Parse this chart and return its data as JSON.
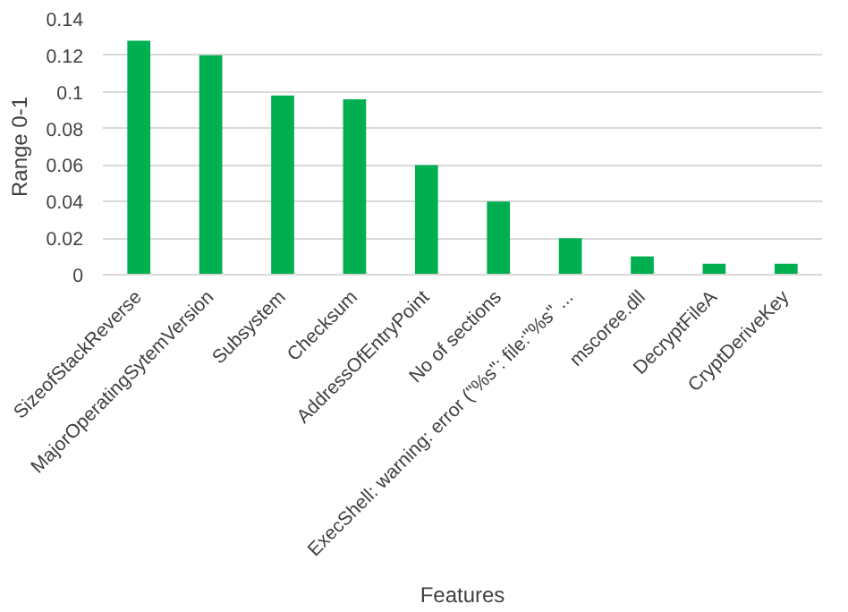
{
  "chart_data": {
    "type": "bar",
    "xlabel": "Features",
    "ylabel": "Range 0-1",
    "categories": [
      "SizeofStackReverse",
      "MajorOperatingSytemVersion",
      "Subsystem",
      "Checksum",
      "AddressOfEntryPoint",
      "No of sections",
      "ExecShell: warning: error (\"%s\": file:\"%s\" ...",
      "mscoree.dll",
      "DecryptFileA",
      "CryptDeriveKey"
    ],
    "values": [
      0.128,
      0.12,
      0.098,
      0.096,
      0.06,
      0.04,
      0.02,
      0.01,
      0.006,
      0.006
    ],
    "color": "#00b050",
    "ylim": [
      0,
      0.14
    ],
    "yticks": [
      0,
      0.02,
      0.04,
      0.06,
      0.08,
      {
        "value": 0.1,
        "label": "0.1"
      },
      0.12,
      0.14
    ],
    "grid": "y"
  }
}
